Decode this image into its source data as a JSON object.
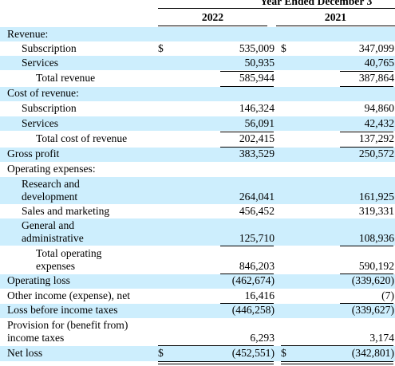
{
  "header": {
    "period": "Year Ended December 3",
    "year1": "2022",
    "year2": "2021"
  },
  "rows": [
    {
      "label": "Revenue:"
    },
    {
      "label": "Subscription",
      "cur1": "$",
      "v1": "535,009",
      "cur2": "$",
      "v2": "347,099"
    },
    {
      "label": "Services",
      "v1": "50,935",
      "v2": "40,765"
    },
    {
      "label": "Total revenue",
      "v1": "585,944",
      "v2": "387,864"
    },
    {
      "label": "Cost of revenue:"
    },
    {
      "label": "Subscription",
      "v1": "146,324",
      "v2": "94,860"
    },
    {
      "label": "Services",
      "v1": "56,091",
      "v2": "42,432"
    },
    {
      "label": "Total cost of revenue",
      "v1": "202,415",
      "v2": "137,292"
    },
    {
      "label": "Gross profit",
      "v1": "383,529",
      "v2": "250,572"
    },
    {
      "label": "Operating expenses:"
    },
    {
      "label_line1": "Research and",
      "label_line2": "development",
      "v1": "264,041",
      "v2": "161,925"
    },
    {
      "label": "Sales and marketing",
      "v1": "456,452",
      "v2": "319,331"
    },
    {
      "label_line1": "General and",
      "label_line2": "administrative",
      "v1": "125,710",
      "v2": "108,936"
    },
    {
      "label_line1": "Total operating",
      "label_line2": "expenses",
      "v1": "846,203",
      "v2": "590,192"
    },
    {
      "label": "Operating loss",
      "v1": "(462,674)",
      "v2": "(339,620)"
    },
    {
      "label": "Other income (expense), net",
      "v1": "16,416",
      "v2": "(7)"
    },
    {
      "label": "Loss before income taxes",
      "v1": "(446,258)",
      "v2": "(339,627)"
    },
    {
      "label_line1": "Provision for (benefit from)",
      "label_line2": "income taxes",
      "v1": "6,293",
      "v2": "3,174"
    },
    {
      "label": "Net loss",
      "cur1": "$",
      "v1": "(452,551)",
      "cur2": "$",
      "v2": "(342,801)"
    }
  ]
}
